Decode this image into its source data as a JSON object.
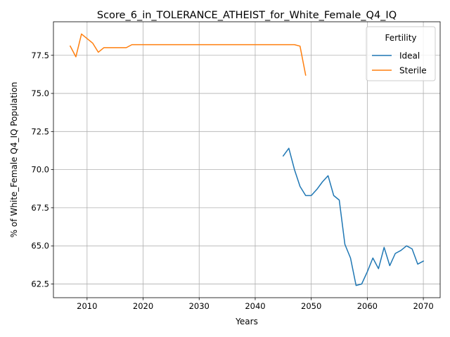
{
  "chart_data": {
    "type": "line",
    "title": "Score_6_in_TOLERANCE_ATHEIST_for_White_Female_Q4_IQ",
    "xlabel": "Years",
    "ylabel": "% of White_Female Q4_IQ Population",
    "xlim": [
      2004,
      2073
    ],
    "ylim": [
      61.6,
      79.7
    ],
    "xticks": [
      2010,
      2020,
      2030,
      2040,
      2050,
      2060,
      2070
    ],
    "xtick_labels": [
      "2010",
      "2020",
      "2030",
      "2040",
      "2050",
      "2060",
      "2070"
    ],
    "yticks": [
      62.5,
      65.0,
      67.5,
      70.0,
      72.5,
      75.0,
      77.5
    ],
    "ytick_labels": [
      "62.5",
      "65.0",
      "67.5",
      "70.0",
      "72.5",
      "75.0",
      "77.5"
    ],
    "grid": true,
    "legend": {
      "title": "Fertility",
      "position": "top-right"
    },
    "series": [
      {
        "name": "Ideal",
        "color": "#1f77b4",
        "x": [
          2045,
          2046,
          2047,
          2048,
          2049,
          2050,
          2051,
          2052,
          2053,
          2054,
          2055,
          2056,
          2057,
          2058,
          2059,
          2060,
          2061,
          2062,
          2063,
          2064,
          2065,
          2066,
          2067,
          2068,
          2069,
          2070
        ],
        "y": [
          70.9,
          71.4,
          70.0,
          68.9,
          68.3,
          68.3,
          68.7,
          69.2,
          69.6,
          68.3,
          68.0,
          65.1,
          64.2,
          62.4,
          62.5,
          63.3,
          64.2,
          63.5,
          64.9,
          63.7,
          64.5,
          64.7,
          65.0,
          64.8,
          63.8,
          64.0
        ]
      },
      {
        "name": "Sterile",
        "color": "#ff7f0e",
        "x": [
          2007,
          2008,
          2009,
          2010,
          2011,
          2012,
          2013,
          2014,
          2015,
          2016,
          2017,
          2018,
          2019,
          2020,
          2021,
          2022,
          2023,
          2024,
          2025,
          2026,
          2027,
          2028,
          2029,
          2030,
          2031,
          2032,
          2033,
          2034,
          2035,
          2036,
          2037,
          2038,
          2039,
          2040,
          2041,
          2042,
          2043,
          2044,
          2045,
          2046,
          2047,
          2048,
          2049
        ],
        "y": [
          78.1,
          77.4,
          78.9,
          78.6,
          78.3,
          77.7,
          78.0,
          78.0,
          78.0,
          78.0,
          78.0,
          78.2,
          78.2,
          78.2,
          78.2,
          78.2,
          78.2,
          78.2,
          78.2,
          78.2,
          78.2,
          78.2,
          78.2,
          78.2,
          78.2,
          78.2,
          78.2,
          78.2,
          78.2,
          78.2,
          78.2,
          78.2,
          78.2,
          78.2,
          78.2,
          78.2,
          78.2,
          78.2,
          78.2,
          78.2,
          78.2,
          78.1,
          76.2
        ]
      }
    ]
  }
}
